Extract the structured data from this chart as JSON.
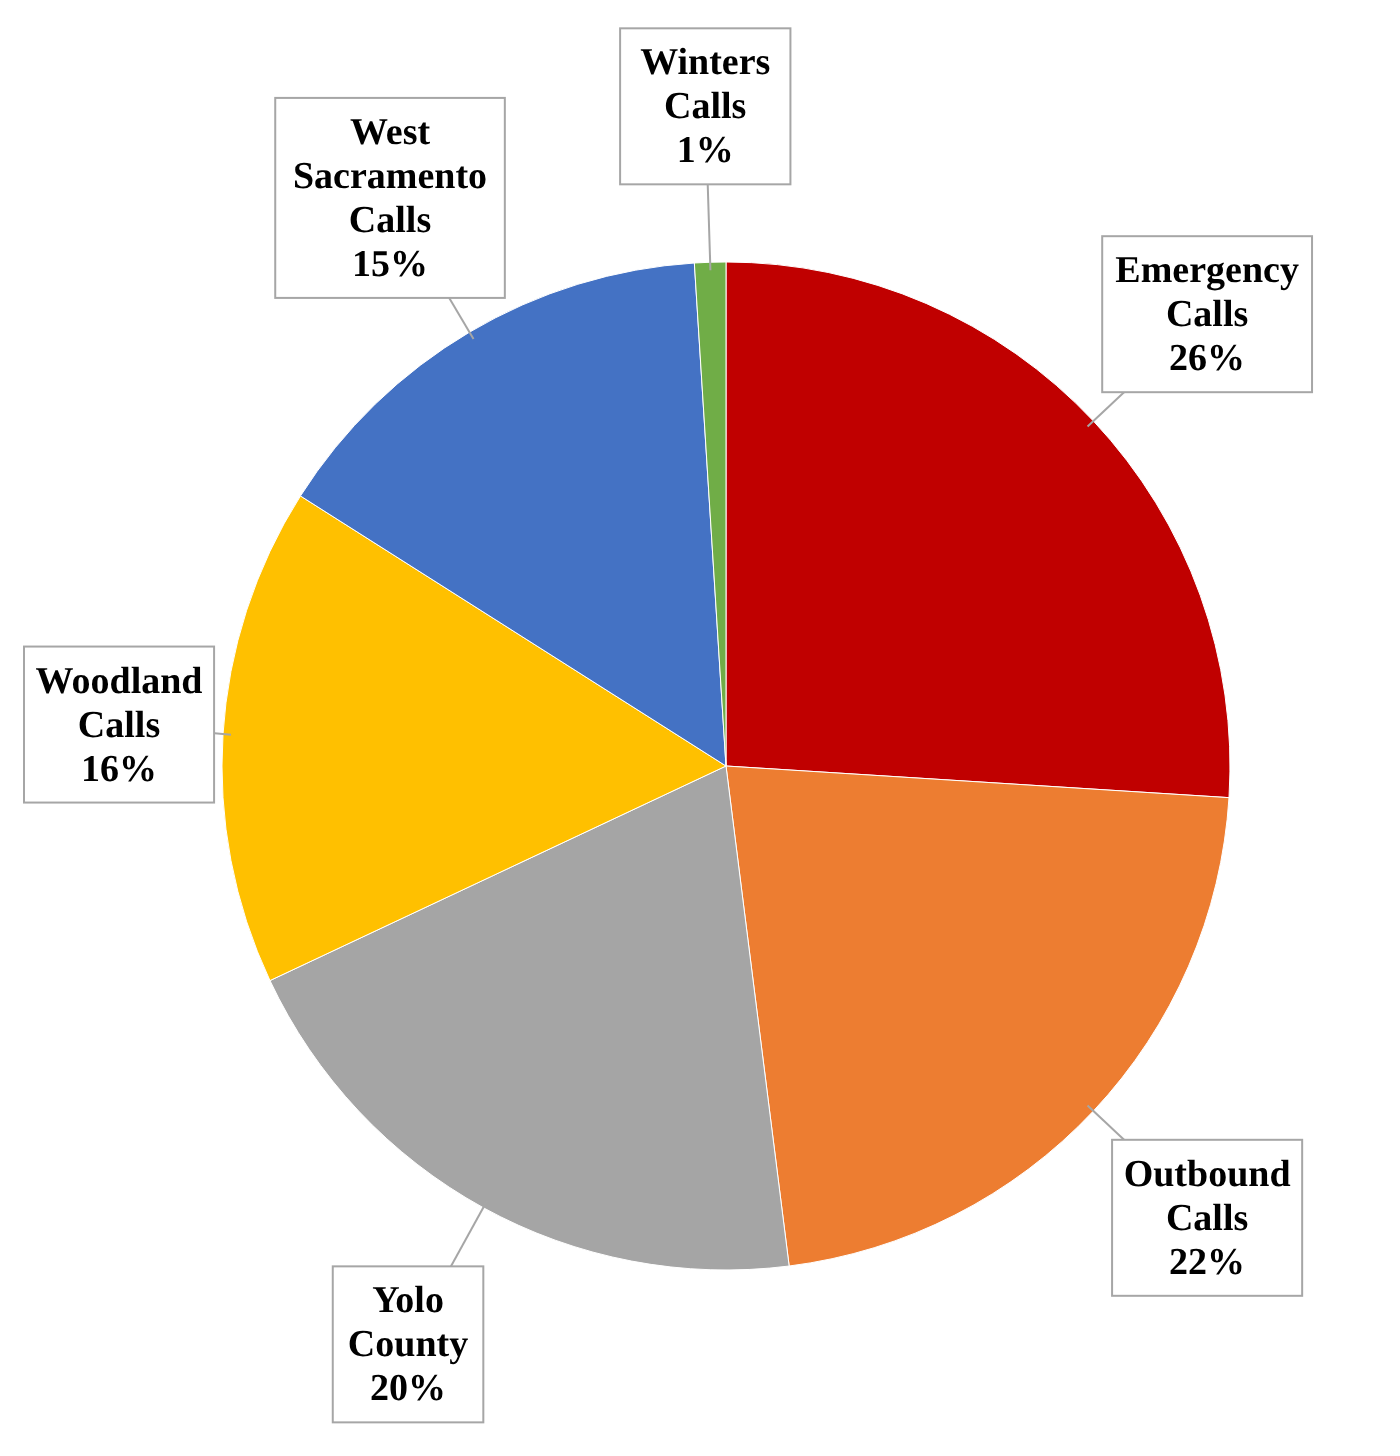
{
  "chart_data": {
    "type": "pie",
    "categories": [
      "Emergency Calls",
      "Outbound Calls",
      "Yolo County",
      "Woodland Calls",
      "West Sacramento Calls",
      "Winters Calls"
    ],
    "values": [
      26,
      22,
      20,
      16,
      15,
      1
    ],
    "colors": [
      "#c00000",
      "#ed7d31",
      "#a5a5a5",
      "#ffc000",
      "#4472c4",
      "#70ad47"
    ],
    "value_labels": [
      "26%",
      "22%",
      "20%",
      "16%",
      "15%",
      "1%"
    ]
  }
}
